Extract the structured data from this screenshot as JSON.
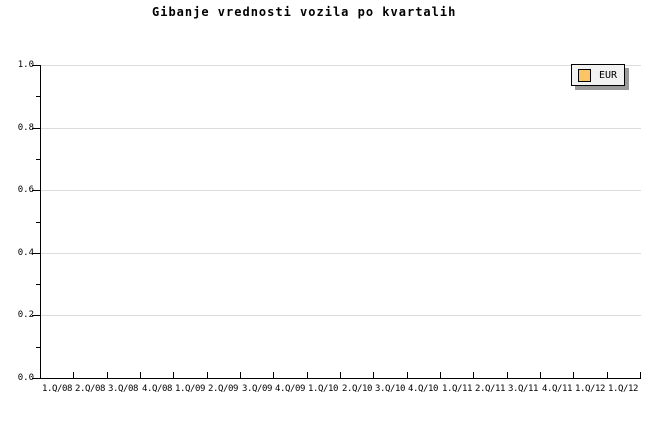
{
  "title": "Gibanje vrednosti vozila po kvartalih",
  "legend": {
    "label": "EUR",
    "swatch_color": "#FBC467",
    "background_color": "#F2F2F2",
    "shadow_color": "#9A9A9A",
    "position": "top-right"
  },
  "colors": {
    "background": "#FFFFFF",
    "axis": "#000000",
    "grid": "#DCDCDC",
    "text": "#000000"
  },
  "chart_data": {
    "type": "line",
    "title": "Gibanje vrednosti vozila po kvartalih",
    "xlabel": "",
    "ylabel": "",
    "categories": [
      "1.Q/08",
      "2.Q/08",
      "3.Q/08",
      "4.Q/08",
      "1.Q/09",
      "2.Q/09",
      "3.Q/09",
      "4.Q/09",
      "1.Q/10",
      "2.Q/10",
      "3.Q/10",
      "4.Q/10",
      "1.Q/11",
      "2.Q/11",
      "3.Q/11",
      "4.Q/11",
      "1.Q/12",
      "1.Q/12"
    ],
    "series": [
      {
        "name": "EUR",
        "color": "#FBC467",
        "values": []
      }
    ],
    "ylim": [
      0.0,
      1.0
    ],
    "yticks": [
      0.0,
      0.2,
      0.4,
      0.6,
      0.8,
      1.0
    ],
    "ytick_labels": [
      "0.0",
      "0.2",
      "0.4",
      "0.6",
      "0.8",
      "1.0"
    ],
    "y_minor_ticks": [
      0.1,
      0.3,
      0.5,
      0.7,
      0.9
    ],
    "grid": "horizontal-major",
    "legend_position": "top-right"
  }
}
